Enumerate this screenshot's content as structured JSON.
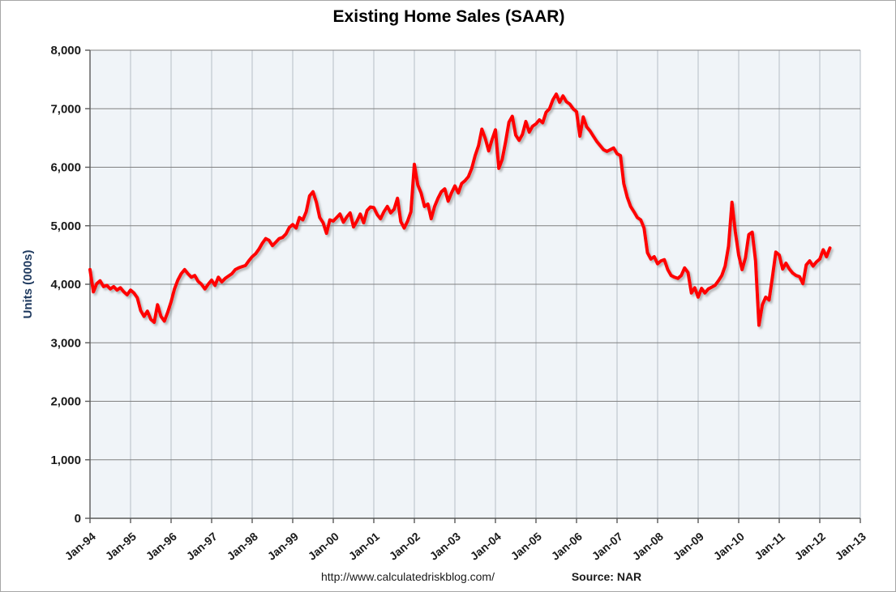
{
  "title": "Existing Home Sales (SAAR)",
  "y_axis": {
    "title": "Units (000s)",
    "tick_labels": [
      "0",
      "1,000",
      "2,000",
      "3,000",
      "4,000",
      "5,000",
      "6,000",
      "7,000",
      "8,000"
    ]
  },
  "x_axis": {
    "tick_labels": [
      "Jan-94",
      "Jan-95",
      "Jan-96",
      "Jan-97",
      "Jan-98",
      "Jan-99",
      "Jan-00",
      "Jan-01",
      "Jan-02",
      "Jan-03",
      "Jan-04",
      "Jan-05",
      "Jan-06",
      "Jan-07",
      "Jan-08",
      "Jan-09",
      "Jan-10",
      "Jan-11",
      "Jan-12",
      "Jan-13"
    ]
  },
  "footer": {
    "url": "http://www.calculatedriskblog.com/",
    "source_label": "Source: NAR"
  },
  "colors": {
    "line": "#FF0000",
    "plot_bg": "#F0F4F8",
    "h_grid": "#808080",
    "v_grid": "#B6BEC6",
    "axis": "#595959",
    "tick_text": "#1A1A1A",
    "y_title_text": "#1F3A5F",
    "shadow": "rgba(120,120,120,0.5)"
  },
  "chart_data": {
    "type": "line",
    "title": "Existing Home Sales (SAAR)",
    "xlabel": "",
    "ylabel": "Units (000s)",
    "frequency": "monthly",
    "x_start": "1994-01",
    "x_end": "2012-04",
    "ylim": [
      0,
      8000
    ],
    "y_tick_interval": 1000,
    "x_tick_interval_months": 12,
    "grid": true,
    "legend": false,
    "source_note": "Source: NAR",
    "series": [
      {
        "name": "Existing Home Sales, Seasonally Adjusted Annual Rate (thousands)",
        "color": "#FF0000",
        "values": [
          4250,
          3870,
          4010,
          4060,
          3960,
          3980,
          3920,
          3960,
          3900,
          3940,
          3870,
          3820,
          3900,
          3850,
          3770,
          3550,
          3450,
          3540,
          3400,
          3350,
          3650,
          3450,
          3370,
          3520,
          3700,
          3920,
          4070,
          4180,
          4250,
          4180,
          4120,
          4150,
          4050,
          4000,
          3920,
          4000,
          4070,
          3980,
          4120,
          4040,
          4100,
          4140,
          4180,
          4250,
          4280,
          4300,
          4320,
          4400,
          4470,
          4520,
          4600,
          4700,
          4780,
          4750,
          4660,
          4720,
          4780,
          4800,
          4860,
          4970,
          5020,
          4960,
          5140,
          5100,
          5240,
          5510,
          5580,
          5400,
          5140,
          5050,
          4870,
          5100,
          5080,
          5140,
          5200,
          5060,
          5150,
          5220,
          4980,
          5080,
          5200,
          5050,
          5260,
          5320,
          5310,
          5190,
          5120,
          5240,
          5330,
          5220,
          5280,
          5470,
          5070,
          4960,
          5080,
          5240,
          6050,
          5700,
          5560,
          5330,
          5370,
          5120,
          5330,
          5470,
          5580,
          5630,
          5420,
          5560,
          5680,
          5560,
          5720,
          5770,
          5840,
          5980,
          6200,
          6370,
          6650,
          6490,
          6280,
          6470,
          6640,
          5980,
          6130,
          6430,
          6770,
          6870,
          6550,
          6460,
          6560,
          6780,
          6600,
          6700,
          6740,
          6810,
          6760,
          6940,
          7000,
          7150,
          7250,
          7110,
          7220,
          7120,
          7080,
          7000,
          6950,
          6530,
          6860,
          6690,
          6620,
          6530,
          6440,
          6370,
          6300,
          6270,
          6300,
          6330,
          6230,
          6200,
          5720,
          5490,
          5330,
          5240,
          5140,
          5100,
          4960,
          4540,
          4430,
          4470,
          4350,
          4400,
          4420,
          4250,
          4150,
          4120,
          4100,
          4150,
          4280,
          4200,
          3850,
          3940,
          3780,
          3930,
          3850,
          3920,
          3950,
          3980,
          4060,
          4150,
          4310,
          4650,
          5400,
          4900,
          4500,
          4250,
          4450,
          4850,
          4890,
          4400,
          3300,
          3650,
          3780,
          3730,
          4130,
          4550,
          4500,
          4260,
          4360,
          4260,
          4190,
          4150,
          4130,
          4010,
          4330,
          4400,
          4310,
          4380,
          4430,
          4590,
          4470,
          4620
        ]
      }
    ]
  }
}
